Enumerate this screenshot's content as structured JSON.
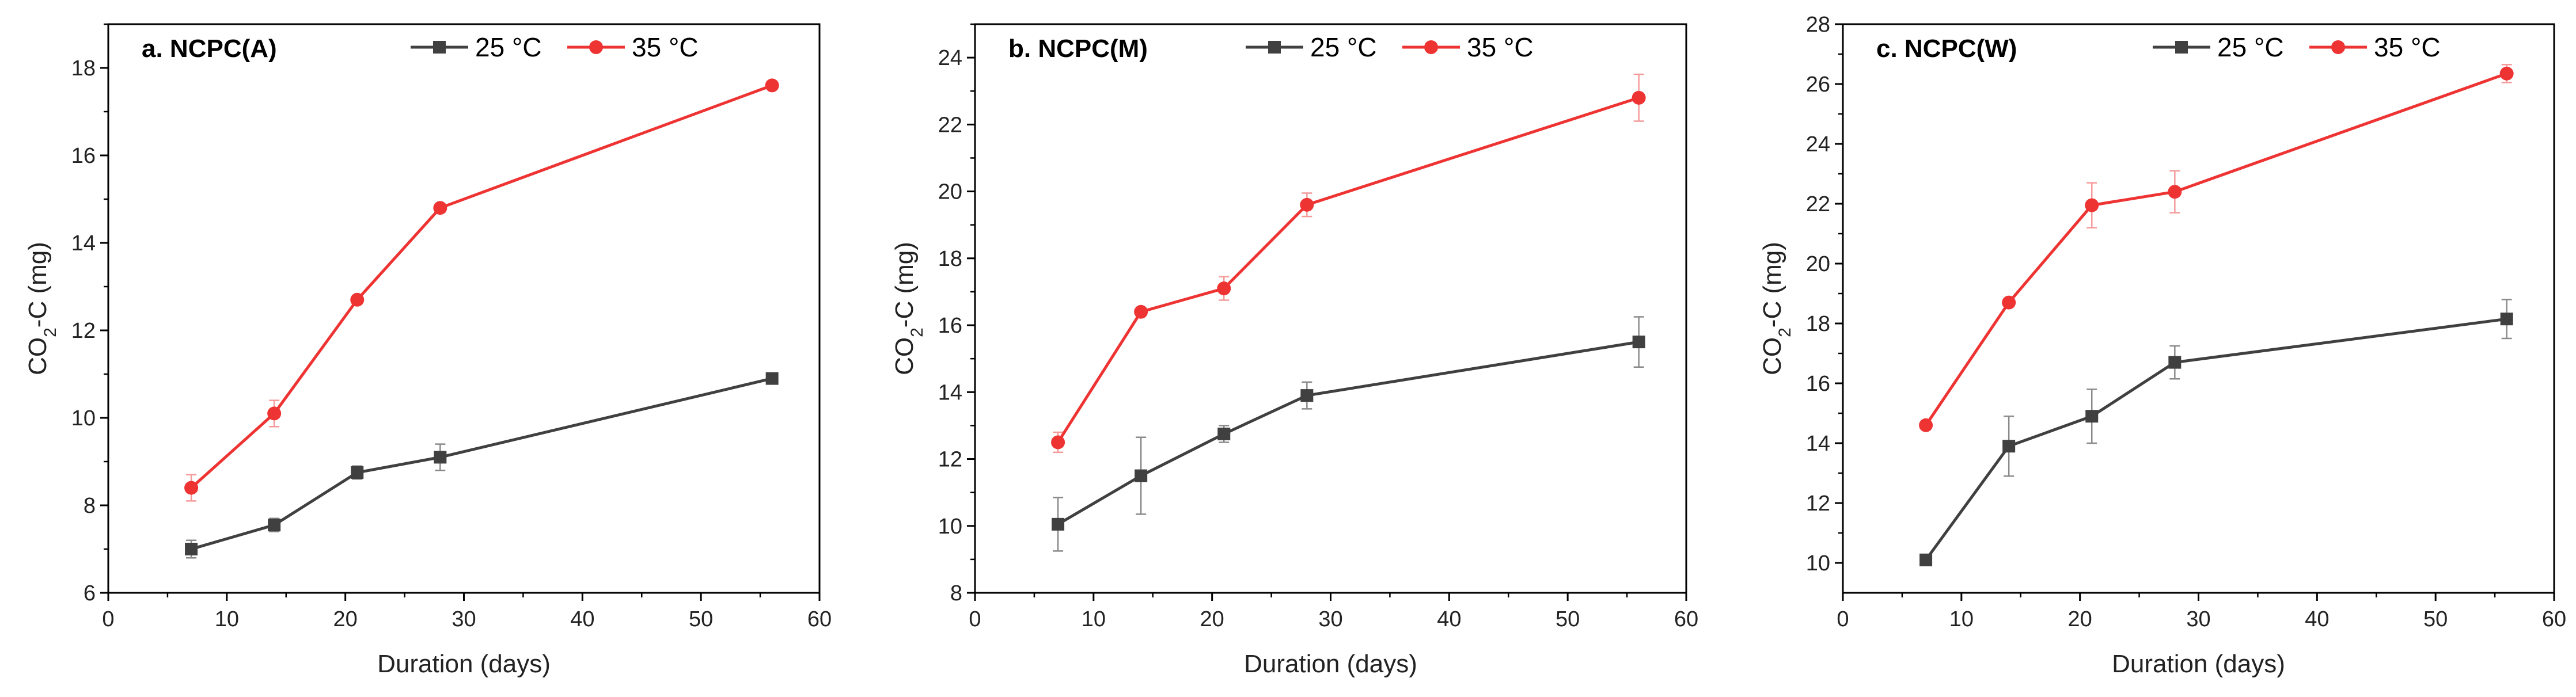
{
  "chart_data": [
    {
      "type": "line",
      "title": "a. NCPC(A)",
      "xlabel": "Duration (days)",
      "ylabel": {
        "base": "CO",
        "sub": "2",
        "rest": "-C (mg)"
      },
      "xlim": [
        0,
        60
      ],
      "ylim": [
        6,
        19
      ],
      "xticks": [
        0,
        10,
        20,
        30,
        40,
        50,
        60
      ],
      "yticks": [
        6,
        8,
        10,
        12,
        14,
        16,
        18
      ],
      "x": [
        7,
        14,
        21,
        28,
        56
      ],
      "series": [
        {
          "name": "25 °C",
          "color": "#404040",
          "marker": "square",
          "values": [
            7.0,
            7.55,
            8.75,
            9.1,
            10.9
          ],
          "errors": [
            0.2,
            0.15,
            0.15,
            0.3,
            0.1
          ]
        },
        {
          "name": "35 °C",
          "color": "#ee3333",
          "marker": "circle",
          "values": [
            8.4,
            10.1,
            12.7,
            14.8,
            17.6
          ],
          "errors": [
            0.3,
            0.3,
            0.05,
            0.1,
            0.05
          ]
        }
      ]
    },
    {
      "type": "line",
      "title": "b. NCPC(M)",
      "xlabel": "Duration (days)",
      "ylabel": {
        "base": "CO",
        "sub": "2",
        "rest": "-C (mg)"
      },
      "xlim": [
        0,
        60
      ],
      "ylim": [
        8,
        25
      ],
      "xticks": [
        0,
        10,
        20,
        30,
        40,
        50,
        60
      ],
      "yticks": [
        8,
        10,
        12,
        14,
        16,
        18,
        20,
        22,
        24
      ],
      "x": [
        7,
        14,
        21,
        28,
        56
      ],
      "series": [
        {
          "name": "25 °C",
          "color": "#404040",
          "marker": "square",
          "values": [
            10.05,
            11.5,
            12.75,
            13.9,
            15.5
          ],
          "errors": [
            0.8,
            1.15,
            0.25,
            0.4,
            0.75
          ]
        },
        {
          "name": "35 °C",
          "color": "#ee3333",
          "marker": "circle",
          "values": [
            12.5,
            16.4,
            17.1,
            19.6,
            22.8
          ],
          "errors": [
            0.3,
            0.1,
            0.35,
            0.35,
            0.7
          ]
        }
      ]
    },
    {
      "type": "line",
      "title": "c. NCPC(W)",
      "xlabel": "Duration (days)",
      "ylabel": {
        "base": "CO",
        "sub": "2",
        "rest": "-C (mg)"
      },
      "xlim": [
        0,
        60
      ],
      "ylim": [
        9,
        28
      ],
      "xticks": [
        0,
        10,
        20,
        30,
        40,
        50,
        60
      ],
      "yticks": [
        10,
        12,
        14,
        16,
        18,
        20,
        22,
        24,
        26,
        28
      ],
      "x": [
        7,
        14,
        21,
        28,
        56
      ],
      "series": [
        {
          "name": "25 °C",
          "color": "#404040",
          "marker": "square",
          "values": [
            10.1,
            13.9,
            14.9,
            16.7,
            18.15
          ],
          "errors": [
            0.05,
            1.0,
            0.9,
            0.55,
            0.65
          ]
        },
        {
          "name": "35 °C",
          "color": "#ee3333",
          "marker": "circle",
          "values": [
            14.6,
            18.7,
            21.95,
            22.4,
            26.35
          ],
          "errors": [
            0.1,
            0.1,
            0.75,
            0.7,
            0.3
          ]
        }
      ]
    }
  ]
}
